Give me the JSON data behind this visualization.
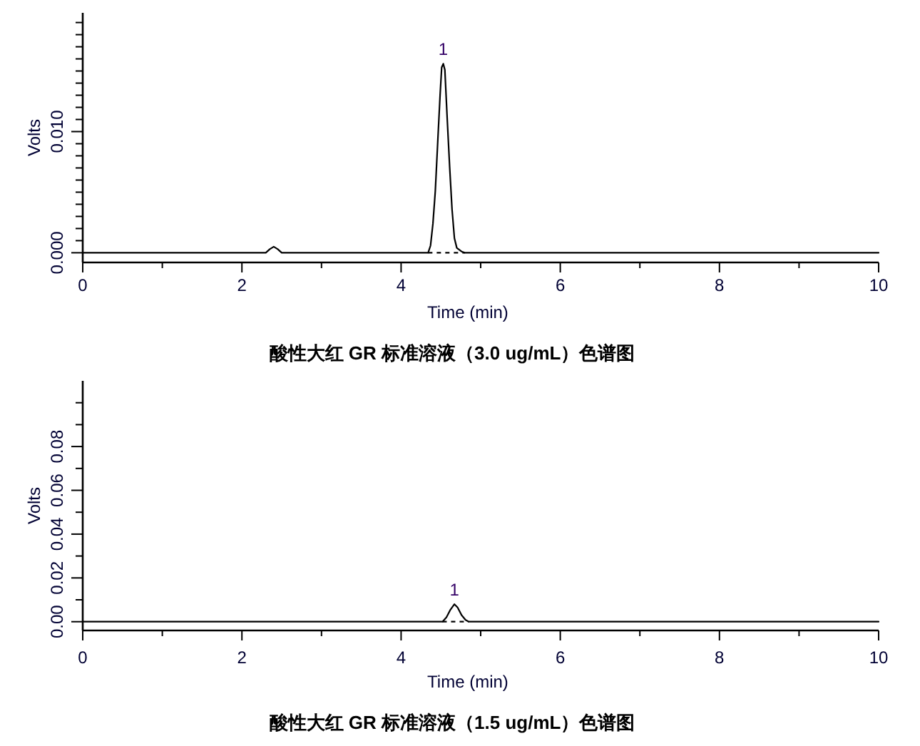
{
  "chart_data": [
    {
      "type": "line",
      "title": "酸性大红 GR 标准溶液（3.0 ug/mL）色谱图",
      "xlabel": "Time (min)",
      "ylabel": "Volts",
      "xlim": [
        0,
        10
      ],
      "xticks": [
        0,
        {
          "value": 1,
          "label": null
        },
        2,
        {
          "value": 3,
          "label": null
        },
        4,
        {
          "value": 5,
          "label": null
        },
        6,
        {
          "value": 7,
          "label": null
        },
        8,
        {
          "value": 9,
          "label": null
        },
        10
      ],
      "ylim": [
        -0.0008,
        0.0198
      ],
      "yticks": [
        {
          "value": 0,
          "label": "0.000"
        },
        {
          "value": 0.001,
          "label": null
        },
        {
          "value": 0.002,
          "label": null
        },
        {
          "value": 0.003,
          "label": null
        },
        {
          "value": 0.004,
          "label": null
        },
        {
          "value": 0.005,
          "label": null
        },
        {
          "value": 0.006,
          "label": null
        },
        {
          "value": 0.007,
          "label": null
        },
        {
          "value": 0.008,
          "label": null
        },
        {
          "value": 0.009,
          "label": null
        },
        {
          "value": 0.01,
          "label": "0.010"
        },
        {
          "value": 0.011,
          "label": null
        },
        {
          "value": 0.012,
          "label": null
        },
        {
          "value": 0.013,
          "label": null
        },
        {
          "value": 0.014,
          "label": null
        },
        {
          "value": 0.015,
          "label": null
        },
        {
          "value": 0.016,
          "label": null
        },
        {
          "value": 0.017,
          "label": null
        },
        {
          "value": 0.018,
          "label": null
        },
        {
          "value": 0.019,
          "label": null
        }
      ],
      "series": [
        {
          "color": "#000000",
          "x": [
            0,
            2.3,
            2.35,
            2.4,
            2.45,
            2.5,
            4.34,
            4.37,
            4.4,
            4.43,
            4.46,
            4.49,
            4.51,
            4.53,
            4.55,
            4.58,
            4.61,
            4.64,
            4.67,
            4.7,
            4.76,
            4.8,
            10
          ],
          "values": [
            0,
            0,
            0.0003,
            0.0005,
            0.0003,
            0,
            0,
            0.0006,
            0.0024,
            0.0051,
            0.0091,
            0.013,
            0.0153,
            0.0156,
            0.0151,
            0.011,
            0.0071,
            0.0036,
            0.0012,
            0.0004,
            0.0001,
            0,
            0
          ]
        },
        {
          "color": "#000000",
          "line_style": "dashed",
          "x": [
            4.34,
            4.8
          ],
          "values": [
            0,
            0
          ]
        }
      ],
      "annotations": [
        {
          "text": "1",
          "x": 4.53,
          "y": 0.0156
        }
      ]
    },
    {
      "type": "line",
      "title": "酸性大红 GR 标准溶液（1.5 ug/mL）色谱图",
      "xlabel": "Time (min)",
      "ylabel": "Volts",
      "xlim": [
        0,
        10
      ],
      "xticks": [
        0,
        {
          "value": 1,
          "label": null
        },
        2,
        {
          "value": 3,
          "label": null
        },
        4,
        {
          "value": 5,
          "label": null
        },
        6,
        {
          "value": 7,
          "label": null
        },
        8,
        {
          "value": 9,
          "label": null
        },
        10
      ],
      "ylim": [
        -0.004,
        0.11
      ],
      "yticks": [
        {
          "value": 0,
          "label": "0.00"
        },
        {
          "value": 0.01,
          "label": null
        },
        {
          "value": 0.02,
          "label": "0.02"
        },
        {
          "value": 0.03,
          "label": null
        },
        {
          "value": 0.04,
          "label": "0.04"
        },
        {
          "value": 0.05,
          "label": null
        },
        {
          "value": 0.06,
          "label": "0.06"
        },
        {
          "value": 0.07,
          "label": null
        },
        {
          "value": 0.08,
          "label": "0.08"
        },
        {
          "value": 0.09,
          "label": null
        },
        {
          "value": 0.1,
          "label": null
        }
      ],
      "series": [
        {
          "color": "#000000",
          "x": [
            0,
            4.52,
            4.57,
            4.62,
            4.67,
            4.71,
            4.76,
            4.81,
            4.85,
            10
          ],
          "values": [
            0,
            0,
            0.002,
            0.0055,
            0.008,
            0.0065,
            0.003,
            0.0008,
            0,
            0
          ]
        },
        {
          "color": "#000000",
          "line_style": "dashed",
          "x": [
            4.52,
            4.85
          ],
          "values": [
            0,
            0
          ]
        }
      ],
      "annotations": [
        {
          "text": "1",
          "x": 4.67,
          "y": 0.008
        }
      ]
    }
  ]
}
